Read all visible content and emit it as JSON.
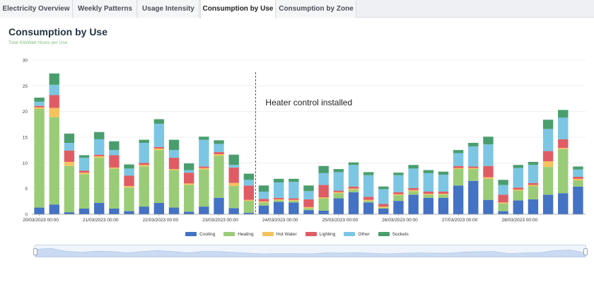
{
  "tabs": [
    {
      "label": "Electricity Overview",
      "active": false
    },
    {
      "label": "Weekly Patterns",
      "active": false
    },
    {
      "label": "Usage Intensity",
      "active": false
    },
    {
      "label": "Consumption by Use",
      "active": true
    },
    {
      "label": "Consumption by Zone",
      "active": false
    }
  ],
  "page": {
    "title": "Consumption by Use",
    "subtitle": "Total KiloWatt Hours per Use"
  },
  "chart_data": {
    "type": "bar",
    "stacked": true,
    "ylim": [
      0,
      30
    ],
    "yticks": [
      0,
      5,
      10,
      15,
      20,
      25,
      30
    ],
    "x_tick_labels": [
      "20/03/2023 00:00",
      "21/03/2023 00:00",
      "22/03/2023 00:00",
      "23/03/2023 00:00",
      "24/03/2023 00:00",
      "25/03/2023 00:00",
      "26/03/2023 00:00",
      "27/03/2023 00:00",
      "28/03/2023 00:00"
    ],
    "annotation": {
      "text": "Heater control installed",
      "after_bar_index": 14
    },
    "grid": true,
    "legend": "bottom",
    "series": [
      {
        "name": "Cooling",
        "color": "#4472c4",
        "values": [
          1.3,
          1.9,
          0.4,
          1.1,
          2.2,
          1.1,
          0.6,
          1.5,
          2.2,
          1.3,
          0.5,
          1.5,
          3.2,
          1.2,
          0.3,
          1.7,
          2.4,
          2.3,
          0.8,
          0.7,
          3.1,
          4.3,
          2.3,
          1.1,
          2.6,
          3.8,
          3.2,
          3.2,
          5.6,
          6.5,
          2.8,
          0.6,
          2.7,
          2.9,
          3.8,
          4.1,
          5.4
        ]
      },
      {
        "name": "Heating",
        "color": "#9acc78",
        "values": [
          19.2,
          17.0,
          9.0,
          6.7,
          8.8,
          7.8,
          4.6,
          7.8,
          10.3,
          7.3,
          5.2,
          7.2,
          8.2,
          4.3,
          2.3,
          0.6,
          0.3,
          0.3,
          0.4,
          2.4,
          1.0,
          0.5,
          0.3,
          0.2,
          1.1,
          0.7,
          0.6,
          0.6,
          3.2,
          2.3,
          4.1,
          1.5,
          1.9,
          2.6,
          5.4,
          8.6,
          1.2
        ]
      },
      {
        "name": "Hot Water",
        "color": "#f4c35d",
        "values": [
          0.3,
          1.8,
          0.8,
          0.3,
          0.3,
          0.2,
          0.3,
          0.3,
          0.3,
          0.2,
          0.3,
          0.3,
          0.3,
          0.6,
          0.2,
          0.2,
          0.2,
          0.2,
          0.2,
          0.2,
          0.2,
          0.2,
          0.2,
          0.2,
          0.2,
          0.2,
          0.2,
          0.2,
          0.2,
          0.2,
          0.3,
          0.2,
          0.2,
          0.2,
          1.1,
          0.2,
          0.3
        ]
      },
      {
        "name": "Lighting",
        "color": "#e05c64",
        "values": [
          0.3,
          2.5,
          2.2,
          0.4,
          0.3,
          2.4,
          2.0,
          0.4,
          0.3,
          2.2,
          2.1,
          0.3,
          0.4,
          3.0,
          2.8,
          0.5,
          0.3,
          0.3,
          1.5,
          2.4,
          0.3,
          0.4,
          0.6,
          0.5,
          0.4,
          0.4,
          0.4,
          0.4,
          0.4,
          0.3,
          2.2,
          1.5,
          0.4,
          0.4,
          2.0,
          1.7,
          0.4
        ]
      },
      {
        "name": "Other",
        "color": "#7cc6e4",
        "values": [
          0.8,
          2.0,
          1.5,
          2.5,
          3.0,
          1.0,
          1.4,
          3.9,
          4.5,
          1.5,
          0.5,
          5.2,
          1.6,
          0.5,
          1.1,
          1.4,
          3.0,
          3.2,
          1.6,
          2.3,
          3.6,
          4.2,
          4.2,
          2.9,
          3.3,
          3.8,
          3.6,
          3.3,
          2.5,
          3.9,
          4.2,
          1.9,
          3.8,
          3.5,
          4.3,
          4.2,
          1.4
        ]
      },
      {
        "name": "Sockets",
        "color": "#4a9e6e",
        "values": [
          0.8,
          2.2,
          1.8,
          0.5,
          1.4,
          1.7,
          0.8,
          0.6,
          0.9,
          2.0,
          1.3,
          0.6,
          0.7,
          2.0,
          1.2,
          1.2,
          0.7,
          0.6,
          1.1,
          1.4,
          0.6,
          0.5,
          0.6,
          0.5,
          0.5,
          0.7,
          0.6,
          0.6,
          0.6,
          0.7,
          1.5,
          1.0,
          0.6,
          0.6,
          1.8,
          1.5,
          0.6
        ]
      }
    ]
  },
  "colors": {
    "title": "#233445",
    "subtitle": "#7dbf7e",
    "grid": "#e6e6e6",
    "navigator_fill": "#c9daf2"
  }
}
